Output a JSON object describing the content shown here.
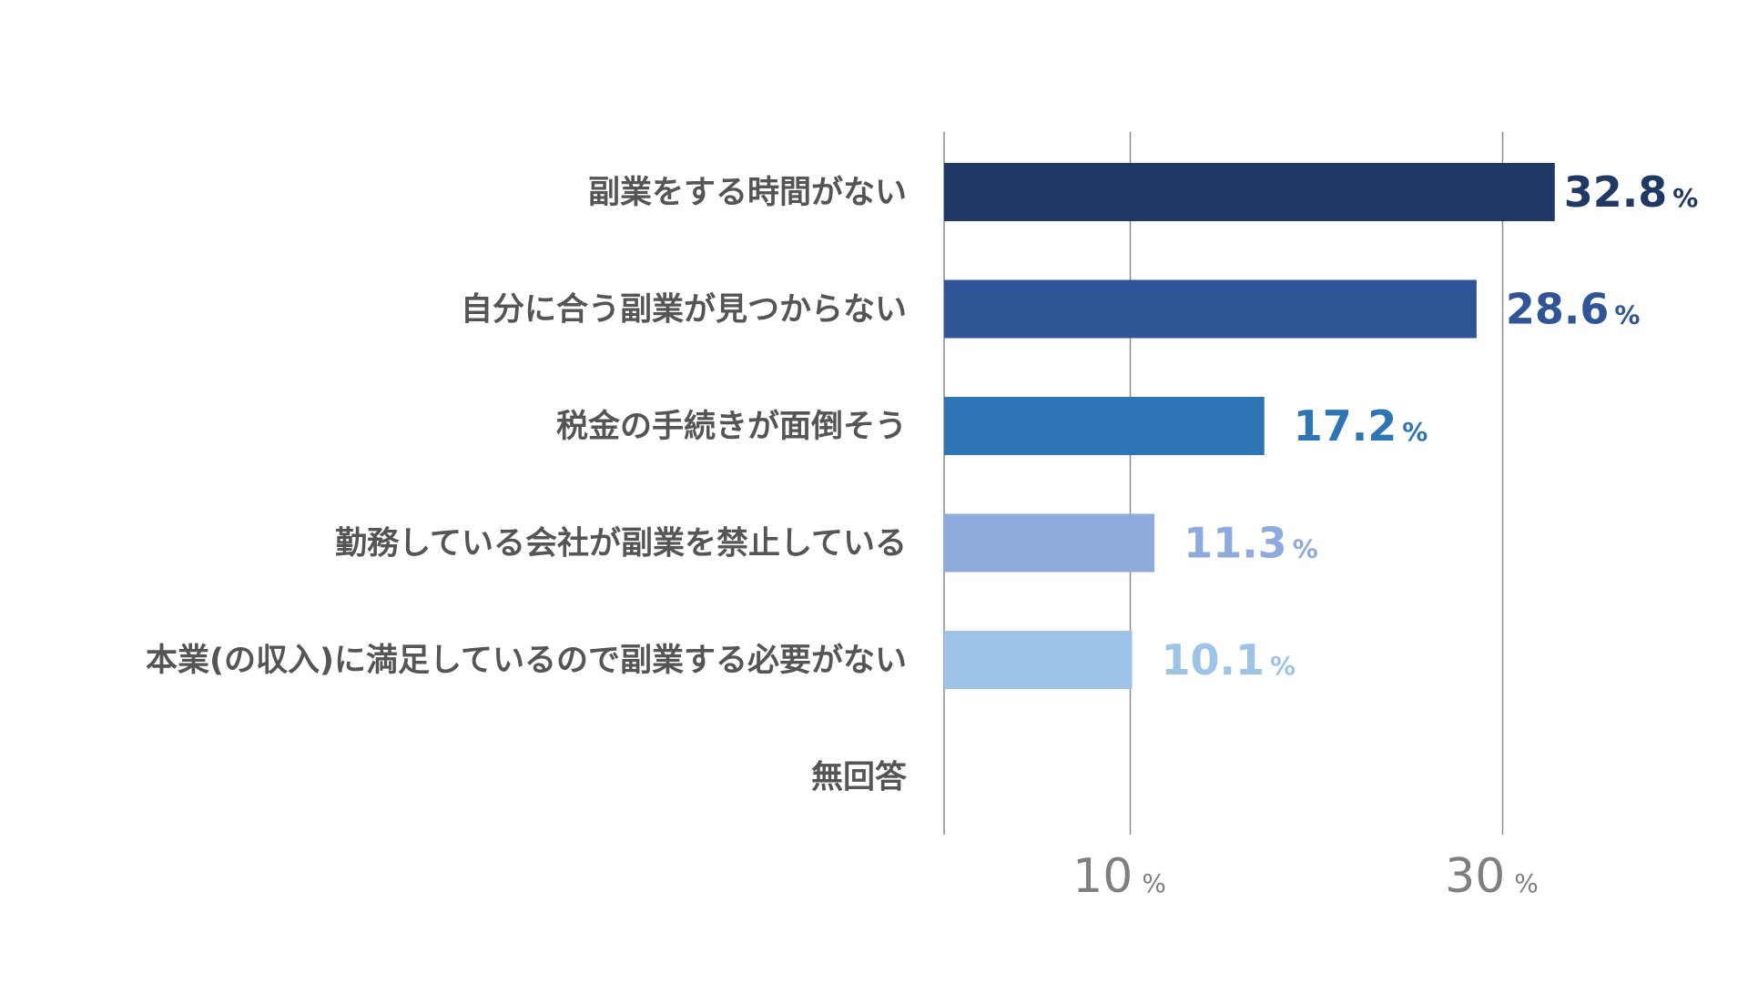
{
  "chart_data": {
    "type": "bar",
    "orientation": "horizontal",
    "categories": [
      "副業をする時間がない",
      "自分に合う副業が見つからない",
      "税金の手続きが面倒そう",
      "勤務している会社が副業を禁止している",
      "本業(の収入)に満足しているので副業する必要がない",
      "無回答"
    ],
    "values": [
      32.8,
      28.6,
      17.2,
      11.3,
      10.1,
      null
    ],
    "value_labels": [
      "32.8",
      "28.6",
      "17.2",
      "11.3",
      "10.1",
      ""
    ],
    "value_unit": "%",
    "bar_colors": [
      "#203864",
      "#2f5597",
      "#2e75b6",
      "#8faadc",
      "#9dc3e6",
      "#9dc3e6"
    ],
    "label_colors": [
      "#203864",
      "#2f5597",
      "#2e75b6",
      "#8faadc",
      "#9dc3e6",
      "#9dc3e6"
    ],
    "x_ticks": [
      {
        "value": 10,
        "label": "10",
        "unit": "%"
      },
      {
        "value": 30,
        "label": "30",
        "unit": "%"
      }
    ],
    "xlim": [
      0,
      35
    ],
    "grid": true,
    "title": "",
    "xlabel": "",
    "ylabel": ""
  }
}
